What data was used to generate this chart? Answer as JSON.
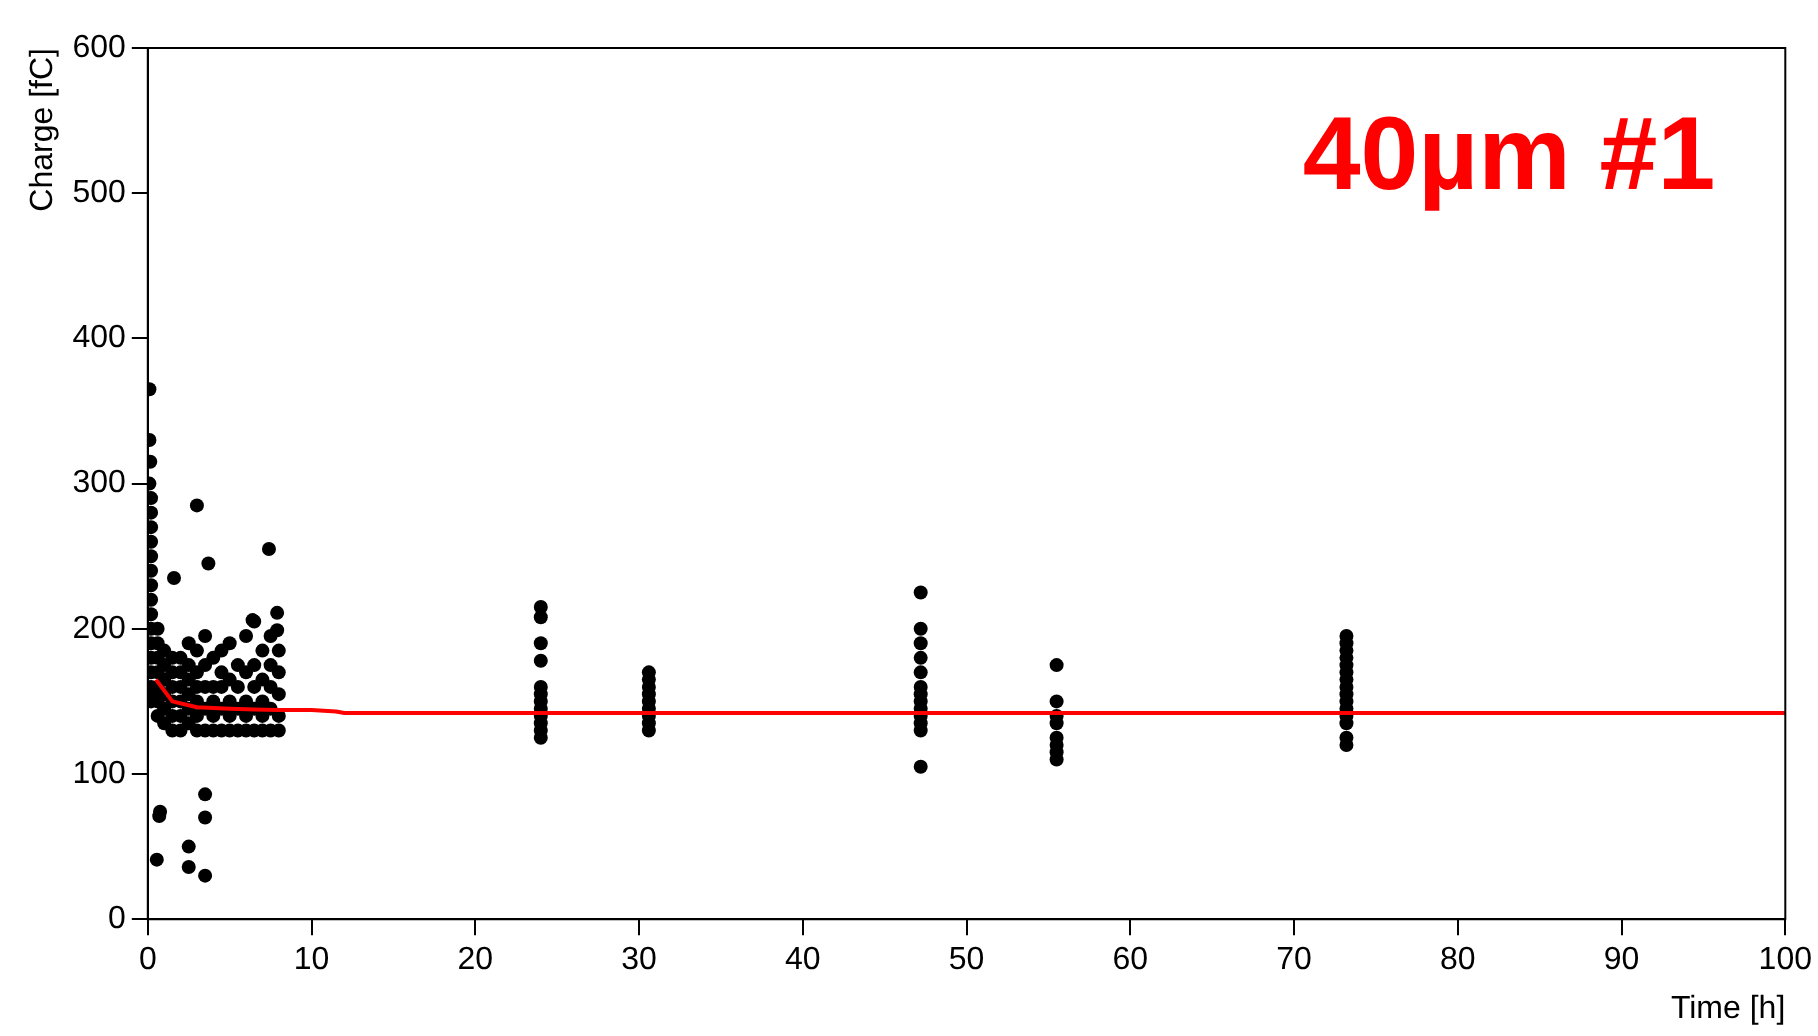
{
  "chart_data": {
    "type": "scatter",
    "xlabel": "Time [h]",
    "ylabel": "Charge [fC]",
    "xlim": [
      0,
      100
    ],
    "xticks": [
      0,
      10,
      20,
      30,
      40,
      50,
      60,
      70,
      80,
      90,
      100
    ],
    "ylim": [
      0,
      600
    ],
    "yticks": [
      0,
      100,
      200,
      300,
      400,
      500,
      600
    ],
    "grid": false,
    "legend": false,
    "marker": "circle",
    "annotations": [
      "40µm #1"
    ],
    "series": [
      {
        "color": "#000000",
        "x": [
          0.1,
          0.1,
          0.15,
          0.1,
          0.2,
          0.2,
          0.2,
          0.2,
          0.2,
          0.2,
          0.2,
          0.2,
          0.2,
          0.2,
          0.2,
          0.2,
          0.2,
          0.2,
          0.2,
          0.2,
          0.6,
          0.6,
          0.6,
          0.6,
          0.6,
          0.6,
          0.6,
          1,
          1,
          1,
          1,
          1,
          1,
          1.5,
          1.5,
          1.5,
          1.5,
          1.5,
          1.5,
          2,
          2,
          2,
          2,
          2,
          2,
          2.5,
          2.5,
          2.5,
          2.5,
          2.5,
          2.5,
          3,
          3,
          3,
          3,
          3,
          3,
          3.5,
          3.5,
          3.5,
          3.5,
          3.5,
          4,
          4,
          4,
          4,
          4,
          4.5,
          4.5,
          4.5,
          4.5,
          4.5,
          5,
          5,
          5,
          5,
          5,
          5.5,
          5.5,
          5.5,
          5.5,
          6,
          6,
          6,
          6,
          6,
          6.5,
          6.5,
          6.5,
          6.5,
          6.5,
          7,
          7,
          7,
          7,
          7,
          7.5,
          7.5,
          7.5,
          7.5,
          7.5,
          8,
          8,
          8,
          8,
          8,
          1.6,
          3,
          3.7,
          7.4,
          7.9,
          7.9,
          6.4,
          0.75,
          0.7,
          0.55,
          3.5,
          3.5,
          2.5,
          2.5,
          3.5,
          24,
          24,
          24,
          24,
          24,
          24,
          24,
          24,
          24,
          24,
          24,
          24,
          30.6,
          30.6,
          30.6,
          30.6,
          30.6,
          30.6,
          30.6,
          30.6,
          30.6,
          47.2,
          47.2,
          47.2,
          47.2,
          47.2,
          47.2,
          47.2,
          47.2,
          47.2,
          47.2,
          47.2,
          47.2,
          47.2,
          55.5,
          55.5,
          55.5,
          55.5,
          55.5,
          55.5,
          55.5,
          55.5,
          73.2,
          73.2,
          73.2,
          73.2,
          73.2,
          73.2,
          73.2,
          73.2,
          73.2,
          73.2,
          73.2,
          73.2,
          73.2,
          73.2,
          73.2
        ],
        "values": [
          365,
          330,
          315,
          300,
          290,
          280,
          270,
          260,
          250,
          240,
          230,
          220,
          210,
          200,
          190,
          180,
          170,
          160,
          150,
          155,
          140,
          150,
          160,
          170,
          180,
          190,
          200,
          135,
          145,
          155,
          165,
          175,
          185,
          130,
          140,
          150,
          160,
          170,
          180,
          130,
          140,
          150,
          160,
          170,
          180,
          135,
          145,
          155,
          165,
          175,
          190,
          130,
          140,
          150,
          160,
          170,
          185,
          130,
          145,
          160,
          175,
          195,
          130,
          140,
          150,
          160,
          180,
          130,
          145,
          160,
          170,
          185,
          130,
          140,
          150,
          165,
          190,
          130,
          145,
          160,
          175,
          130,
          140,
          150,
          170,
          195,
          130,
          145,
          160,
          175,
          205,
          130,
          140,
          150,
          165,
          185,
          130,
          145,
          160,
          175,
          195,
          130,
          140,
          155,
          170,
          185,
          235,
          285,
          245,
          255,
          211,
          199,
          206,
          74,
          71,
          41,
          86,
          70,
          50,
          36,
          30,
          215,
          208,
          190,
          178,
          160,
          155,
          150,
          145,
          140,
          135,
          130,
          125,
          170,
          165,
          160,
          155,
          150,
          145,
          140,
          135,
          130,
          225,
          200,
          190,
          180,
          170,
          160,
          155,
          150,
          145,
          140,
          135,
          130,
          105,
          175,
          150,
          140,
          135,
          125,
          120,
          115,
          110,
          195,
          190,
          185,
          180,
          175,
          170,
          165,
          160,
          155,
          150,
          145,
          140,
          135,
          125,
          120
        ]
      },
      {
        "type": "line",
        "color": "#ff0000",
        "marker": "none",
        "line_style": "solid",
        "x": [
          0.5,
          1.5,
          3,
          5,
          8,
          10,
          11.5,
          12,
          100
        ],
        "values": [
          165,
          150,
          146,
          145,
          144,
          144,
          143,
          142,
          142
        ]
      }
    ]
  }
}
